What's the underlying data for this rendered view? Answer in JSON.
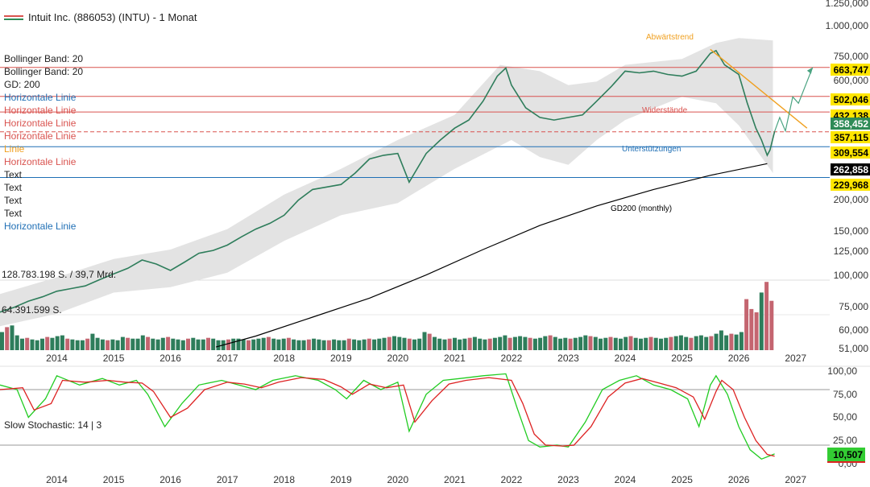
{
  "header": {
    "title": "Intuit Inc. (886053) (INTU) - 1 Monat"
  },
  "legend": {
    "items": [
      {
        "label": "Bollinger Band: 20",
        "color": "#222222"
      },
      {
        "label": "Bollinger Band: 20",
        "color": "#222222"
      },
      {
        "label": "GD: 200",
        "color": "#222222"
      },
      {
        "label": "Horizontale Linie",
        "color": "#1f6fb5"
      },
      {
        "label": "Horizontale Linie",
        "color": "#d9534f"
      },
      {
        "label": "Horizontale Linie",
        "color": "#d9534f"
      },
      {
        "label": "Horizontale Linie",
        "color": "#d9534f"
      },
      {
        "label": "Linie",
        "color": "#f0a020"
      },
      {
        "label": "Horizontale Linie",
        "color": "#d9534f"
      },
      {
        "label": "Text",
        "color": "#222222"
      },
      {
        "label": "Text",
        "color": "#222222"
      },
      {
        "label": "Text",
        "color": "#222222"
      },
      {
        "label": "Text",
        "color": "#222222"
      },
      {
        "label": "Horizontale Linie",
        "color": "#1f6fb5"
      }
    ]
  },
  "volume": {
    "label_high": "128.783.198 S. / 39,7 Mrd.",
    "label_mid": "64.391.599 S."
  },
  "stochastic": {
    "label": "Slow Stochastic: 14 | 3",
    "axis": [
      "100,00",
      "75,00",
      "50,00",
      "25,00",
      "0,00"
    ],
    "badge": "10,507"
  },
  "colors": {
    "up": "#2e7d5b",
    "down": "#c46570",
    "resistance": "#d9534f",
    "support": "#1f6fb5",
    "trend": "#f0a020",
    "badge_yellow": "#ffe600",
    "badge_black": "#000000",
    "badge_green": "#33cc33",
    "band": "#e3e3e3"
  },
  "annotations": [
    {
      "text": "Abwärtstrend",
      "color": "#f0a020"
    },
    {
      "text": "Widerstände",
      "color": "#d9534f"
    },
    {
      "text": "Unterstützungen",
      "color": "#1f6fb5"
    },
    {
      "text": "GD200 (monthly)",
      "color": "#000000"
    }
  ],
  "chart_data": {
    "type": "line",
    "title": "Intuit Inc. (886053) (INTU) - 1 Monat",
    "yscale": "log",
    "ylim": [
      42000,
      1270000
    ],
    "xlim": [
      2013.0,
      2027.6
    ],
    "x_ticks": [
      "2014",
      "2015",
      "2016",
      "2017",
      "2018",
      "2019",
      "2020",
      "2021",
      "2022",
      "2023",
      "2024",
      "2025",
      "2026",
      "2027"
    ],
    "y_ticks": [
      "1.250,000",
      "1.000,000",
      "750,000",
      "600,000",
      "200,000",
      "150,000",
      "125,000",
      "100,000",
      "75,000",
      "60,000",
      "51,000"
    ],
    "price_labels": [
      {
        "text": "663,747",
        "value": 663747,
        "style": "yellow"
      },
      {
        "text": "502,046",
        "value": 502046,
        "style": "yellow"
      },
      {
        "text": "432,138",
        "value": 432138,
        "style": "yellow"
      },
      {
        "text": "358,452",
        "value": 358452,
        "style": "green"
      },
      {
        "text": "357,115",
        "value": 357115,
        "style": "yellow"
      },
      {
        "text": "309,554",
        "value": 309554,
        "style": "yellow"
      },
      {
        "text": "262,858",
        "value": 262858,
        "style": "black"
      },
      {
        "text": "229,968",
        "value": 229968,
        "style": "yellow"
      }
    ],
    "horizontal_lines": [
      {
        "value": 663747,
        "color": "#d9534f",
        "dash": false
      },
      {
        "value": 502046,
        "color": "#d9534f",
        "dash": false
      },
      {
        "value": 432138,
        "color": "#d9534f",
        "dash": false
      },
      {
        "value": 357115,
        "color": "#d9534f",
        "dash": true
      },
      {
        "value": 309554,
        "color": "#1f6fb5",
        "dash": false
      },
      {
        "value": 229968,
        "color": "#1f6fb5",
        "dash": false
      }
    ],
    "price_close": [
      [
        2013.0,
        63000
      ],
      [
        2013.25,
        66000
      ],
      [
        2013.5,
        70000
      ],
      [
        2013.75,
        73000
      ],
      [
        2014.0,
        77000
      ],
      [
        2014.25,
        79000
      ],
      [
        2014.5,
        81000
      ],
      [
        2014.75,
        86000
      ],
      [
        2015.0,
        91000
      ],
      [
        2015.25,
        96000
      ],
      [
        2015.5,
        104000
      ],
      [
        2015.75,
        100000
      ],
      [
        2016.0,
        94000
      ],
      [
        2016.25,
        102000
      ],
      [
        2016.5,
        111000
      ],
      [
        2016.75,
        114000
      ],
      [
        2017.0,
        120000
      ],
      [
        2017.25,
        130000
      ],
      [
        2017.5,
        140000
      ],
      [
        2017.75,
        148000
      ],
      [
        2018.0,
        160000
      ],
      [
        2018.25,
        185000
      ],
      [
        2018.5,
        205000
      ],
      [
        2018.75,
        210000
      ],
      [
        2019.0,
        215000
      ],
      [
        2019.25,
        240000
      ],
      [
        2019.5,
        275000
      ],
      [
        2019.75,
        285000
      ],
      [
        2020.0,
        290000
      ],
      [
        2020.2,
        220000
      ],
      [
        2020.5,
        290000
      ],
      [
        2020.75,
        330000
      ],
      [
        2021.0,
        370000
      ],
      [
        2021.25,
        400000
      ],
      [
        2021.5,
        480000
      ],
      [
        2021.75,
        610000
      ],
      [
        2021.9,
        660000
      ],
      [
        2022.0,
        560000
      ],
      [
        2022.25,
        450000
      ],
      [
        2022.5,
        410000
      ],
      [
        2022.75,
        400000
      ],
      [
        2023.0,
        410000
      ],
      [
        2023.25,
        420000
      ],
      [
        2023.5,
        480000
      ],
      [
        2023.75,
        550000
      ],
      [
        2024.0,
        640000
      ],
      [
        2024.25,
        630000
      ],
      [
        2024.5,
        640000
      ],
      [
        2024.75,
        620000
      ],
      [
        2025.0,
        610000
      ],
      [
        2025.25,
        640000
      ],
      [
        2025.5,
        760000
      ],
      [
        2025.6,
        780000
      ],
      [
        2025.75,
        680000
      ],
      [
        2026.0,
        620000
      ],
      [
        2026.15,
        470000
      ],
      [
        2026.3,
        370000
      ],
      [
        2026.4,
        330000
      ],
      [
        2026.5,
        285000
      ],
      [
        2026.55,
        300000
      ],
      [
        2026.63,
        358452
      ]
    ],
    "bollinger_upper": [
      [
        2013.0,
        75000
      ],
      [
        2014.0,
        88000
      ],
      [
        2015.0,
        105000
      ],
      [
        2016.0,
        115000
      ],
      [
        2017.0,
        140000
      ],
      [
        2018.0,
        195000
      ],
      [
        2019.0,
        250000
      ],
      [
        2020.0,
        330000
      ],
      [
        2021.0,
        420000
      ],
      [
        2021.8,
        680000
      ],
      [
        2022.5,
        640000
      ],
      [
        2023.0,
        560000
      ],
      [
        2023.5,
        580000
      ],
      [
        2024.0,
        680000
      ],
      [
        2025.0,
        720000
      ],
      [
        2025.6,
        840000
      ],
      [
        2026.0,
        880000
      ],
      [
        2026.6,
        860000
      ]
    ],
    "bollinger_lower": [
      [
        2013.0,
        55000
      ],
      [
        2014.0,
        62000
      ],
      [
        2015.0,
        76000
      ],
      [
        2016.0,
        80000
      ],
      [
        2017.0,
        92000
      ],
      [
        2018.0,
        125000
      ],
      [
        2019.0,
        160000
      ],
      [
        2020.0,
        180000
      ],
      [
        2021.0,
        250000
      ],
      [
        2022.0,
        330000
      ],
      [
        2022.5,
        280000
      ],
      [
        2023.0,
        260000
      ],
      [
        2023.5,
        330000
      ],
      [
        2024.0,
        400000
      ],
      [
        2025.0,
        500000
      ],
      [
        2025.6,
        470000
      ],
      [
        2026.0,
        380000
      ],
      [
        2026.6,
        240000
      ]
    ],
    "gd200": [
      [
        2016.8,
        45000
      ],
      [
        2017.5,
        50000
      ],
      [
        2018.5,
        60000
      ],
      [
        2019.5,
        72000
      ],
      [
        2020.5,
        90000
      ],
      [
        2021.5,
        115000
      ],
      [
        2022.5,
        145000
      ],
      [
        2023.5,
        175000
      ],
      [
        2024.5,
        205000
      ],
      [
        2025.5,
        235000
      ],
      [
        2026.5,
        262858
      ]
    ],
    "trend_line": [
      [
        2025.5,
        790000
      ],
      [
        2027.2,
        370000
      ]
    ],
    "projection": [
      [
        2026.63,
        358452
      ],
      [
        2026.72,
        410000
      ],
      [
        2026.82,
        360000
      ],
      [
        2026.95,
        500000
      ],
      [
        2027.05,
        470000
      ],
      [
        2027.3,
        663747
      ]
    ],
    "volume_monthly_shares_m": [
      22,
      28,
      30,
      18,
      14,
      15,
      13,
      12,
      14,
      16,
      15,
      17,
      18,
      14,
      13,
      12,
      12,
      14,
      20,
      15,
      13,
      12,
      13,
      12,
      16,
      15,
      14,
      14,
      18,
      16,
      14,
      13,
      15,
      16,
      14,
      13,
      12,
      14,
      15,
      13,
      13,
      15,
      14,
      12,
      12,
      13,
      14,
      14,
      13,
      12,
      13,
      14,
      15,
      16,
      14,
      13,
      14,
      15,
      13,
      12,
      12,
      13,
      14,
      13,
      12,
      12,
      13,
      12,
      12,
      14,
      13,
      12,
      13,
      14,
      13,
      14,
      15,
      16,
      17,
      16,
      15,
      14,
      13,
      14,
      22,
      20,
      16,
      14,
      13,
      14,
      15,
      13,
      14,
      15,
      16,
      14,
      13,
      14,
      15,
      16,
      18,
      15,
      16,
      17,
      16,
      15,
      14,
      15,
      17,
      18,
      16,
      14,
      15,
      14,
      15,
      16,
      18,
      17,
      16,
      14,
      15,
      16,
      15,
      14,
      16,
      17,
      15,
      14,
      15,
      16,
      15,
      14,
      15,
      16,
      17,
      18,
      16,
      15,
      17,
      18,
      16,
      17,
      20,
      24,
      18,
      20,
      19,
      22,
      62,
      50,
      46,
      70,
      83,
      60
    ],
    "stochastic_k": [
      [
        2013.0,
        85
      ],
      [
        2013.3,
        80
      ],
      [
        2013.5,
        50
      ],
      [
        2013.8,
        70
      ],
      [
        2014.0,
        95
      ],
      [
        2014.4,
        85
      ],
      [
        2014.8,
        92
      ],
      [
        2015.1,
        85
      ],
      [
        2015.4,
        90
      ],
      [
        2015.6,
        75
      ],
      [
        2015.9,
        40
      ],
      [
        2016.2,
        65
      ],
      [
        2016.5,
        85
      ],
      [
        2016.9,
        90
      ],
      [
        2017.2,
        85
      ],
      [
        2017.5,
        80
      ],
      [
        2017.8,
        90
      ],
      [
        2018.2,
        95
      ],
      [
        2018.6,
        90
      ],
      [
        2018.9,
        80
      ],
      [
        2019.1,
        70
      ],
      [
        2019.4,
        90
      ],
      [
        2019.7,
        80
      ],
      [
        2020.0,
        88
      ],
      [
        2020.2,
        35
      ],
      [
        2020.5,
        75
      ],
      [
        2020.8,
        90
      ],
      [
        2021.1,
        92
      ],
      [
        2021.5,
        95
      ],
      [
        2021.9,
        97
      ],
      [
        2022.1,
        60
      ],
      [
        2022.3,
        25
      ],
      [
        2022.5,
        18
      ],
      [
        2022.8,
        20
      ],
      [
        2023.0,
        18
      ],
      [
        2023.3,
        45
      ],
      [
        2023.6,
        80
      ],
      [
        2023.9,
        90
      ],
      [
        2024.2,
        95
      ],
      [
        2024.5,
        85
      ],
      [
        2024.8,
        80
      ],
      [
        2025.1,
        70
      ],
      [
        2025.3,
        40
      ],
      [
        2025.5,
        85
      ],
      [
        2025.6,
        95
      ],
      [
        2025.8,
        75
      ],
      [
        2026.0,
        40
      ],
      [
        2026.2,
        15
      ],
      [
        2026.4,
        5
      ],
      [
        2026.63,
        10.5
      ]
    ],
    "stochastic_d": [
      [
        2013.0,
        80
      ],
      [
        2013.4,
        82
      ],
      [
        2013.6,
        58
      ],
      [
        2013.9,
        65
      ],
      [
        2014.1,
        90
      ],
      [
        2014.5,
        88
      ],
      [
        2014.9,
        90
      ],
      [
        2015.2,
        88
      ],
      [
        2015.5,
        87
      ],
      [
        2015.7,
        78
      ],
      [
        2016.0,
        50
      ],
      [
        2016.3,
        60
      ],
      [
        2016.6,
        80
      ],
      [
        2017.0,
        88
      ],
      [
        2017.3,
        86
      ],
      [
        2017.6,
        82
      ],
      [
        2017.9,
        88
      ],
      [
        2018.3,
        93
      ],
      [
        2018.7,
        91
      ],
      [
        2019.0,
        83
      ],
      [
        2019.2,
        75
      ],
      [
        2019.5,
        86
      ],
      [
        2019.8,
        82
      ],
      [
        2020.1,
        85
      ],
      [
        2020.3,
        45
      ],
      [
        2020.6,
        68
      ],
      [
        2020.9,
        86
      ],
      [
        2021.2,
        90
      ],
      [
        2021.6,
        93
      ],
      [
        2022.0,
        90
      ],
      [
        2022.2,
        65
      ],
      [
        2022.4,
        32
      ],
      [
        2022.6,
        20
      ],
      [
        2022.9,
        19
      ],
      [
        2023.1,
        20
      ],
      [
        2023.4,
        40
      ],
      [
        2023.7,
        72
      ],
      [
        2024.0,
        87
      ],
      [
        2024.3,
        92
      ],
      [
        2024.6,
        87
      ],
      [
        2024.9,
        82
      ],
      [
        2025.2,
        72
      ],
      [
        2025.4,
        48
      ],
      [
        2025.6,
        78
      ],
      [
        2025.7,
        90
      ],
      [
        2025.9,
        80
      ],
      [
        2026.1,
        50
      ],
      [
        2026.3,
        25
      ],
      [
        2026.5,
        10
      ],
      [
        2026.63,
        8
      ]
    ]
  }
}
